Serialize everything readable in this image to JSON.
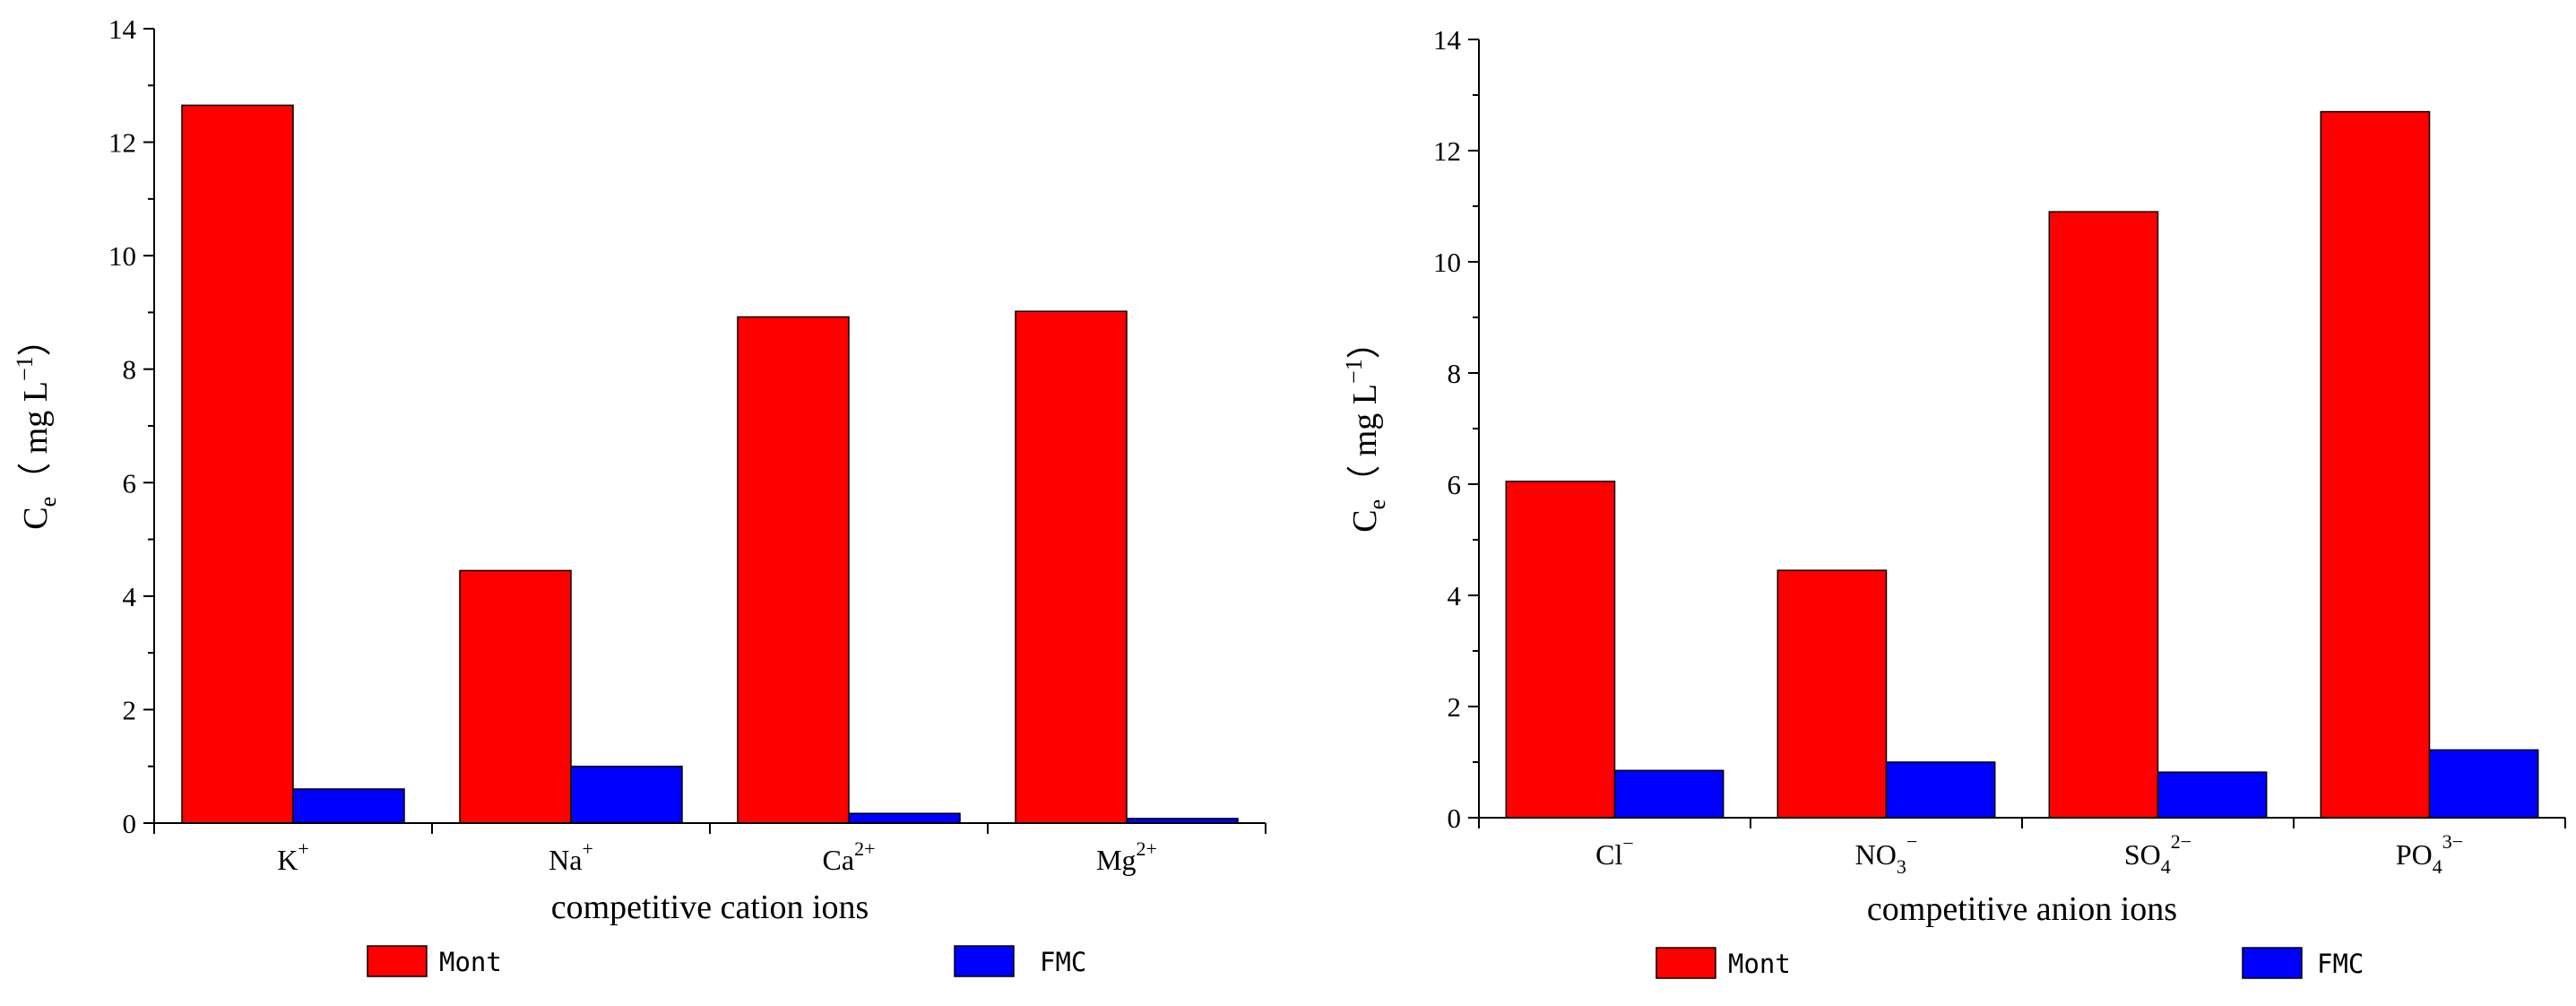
{
  "chart_data": [
    {
      "type": "bar",
      "xlabel": "competitive cation ions",
      "ylabel": {
        "base": "C",
        "sub": "e",
        "mid": "（ mg L",
        "sup": "−1",
        "end": "）"
      },
      "ylim": [
        0,
        14
      ],
      "yticks": [
        "0",
        "2",
        "4",
        "6",
        "8",
        "10",
        "12",
        "14"
      ],
      "categories": [
        {
          "base": "K",
          "sub": "",
          "sup": "+"
        },
        {
          "base": "Na",
          "sub": "",
          "sup": "+"
        },
        {
          "base": "Ca",
          "sub": "",
          "sup": "2+"
        },
        {
          "base": "Mg",
          "sub": "",
          "sup": "2+"
        }
      ],
      "series": [
        {
          "name": "Mont",
          "color": "#ff0000",
          "values": [
            12.65,
            4.45,
            8.92,
            9.02
          ]
        },
        {
          "name": "FMC",
          "color": "#0000ff",
          "values": [
            0.6,
            1.0,
            0.17,
            0.08
          ]
        }
      ],
      "legend": [
        "Mont",
        "FMC"
      ]
    },
    {
      "type": "bar",
      "xlabel": "competitive anion ions",
      "ylabel": {
        "base": "C",
        "sub": "e",
        "mid": "（ mg L",
        "sup": "−1",
        "end": "）"
      },
      "ylim": [
        0,
        14
      ],
      "yticks": [
        "0",
        "2",
        "4",
        "6",
        "8",
        "10",
        "12",
        "14"
      ],
      "categories": [
        {
          "base": "Cl",
          "sub": "",
          "sup": "−"
        },
        {
          "base": "NO",
          "sub": "3",
          "sup": "−"
        },
        {
          "base": "SO",
          "sub": "4",
          "sup": "2−"
        },
        {
          "base": "PO",
          "sub": "4",
          "sup": "3−"
        }
      ],
      "series": [
        {
          "name": "Mont",
          "color": "#ff0000",
          "values": [
            6.05,
            4.45,
            10.9,
            12.7
          ]
        },
        {
          "name": "FMC",
          "color": "#0000ff",
          "values": [
            0.85,
            1.0,
            0.82,
            1.22
          ]
        }
      ],
      "legend": [
        "Mont",
        "FMC"
      ]
    }
  ]
}
